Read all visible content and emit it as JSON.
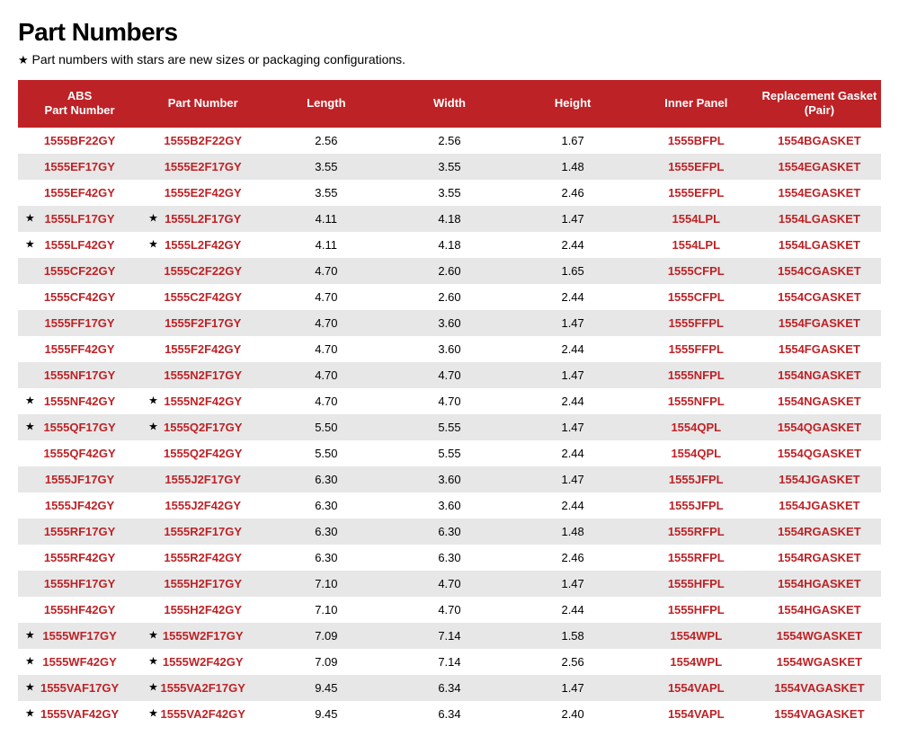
{
  "title": "Part Numbers",
  "subtitle_star": "★",
  "subtitle_text": " Part numbers with stars are new sizes or packaging configurations.",
  "columns": [
    "ABS\nPart Number",
    "Part Number",
    "Length",
    "Width",
    "Height",
    "Inner Panel",
    "Replacement Gasket\n(Pair)"
  ],
  "rows": [
    {
      "abs_star": false,
      "abs": "1555BF22GY",
      "pn_star": false,
      "pn": "1555B2F22GY",
      "len": "2.56",
      "wid": "2.56",
      "hgt": "1.67",
      "panel": "1555BFPL",
      "gasket": "1554BGASKET"
    },
    {
      "abs_star": false,
      "abs": "1555EF17GY",
      "pn_star": false,
      "pn": "1555E2F17GY",
      "len": "3.55",
      "wid": "3.55",
      "hgt": "1.48",
      "panel": "1555EFPL",
      "gasket": "1554EGASKET"
    },
    {
      "abs_star": false,
      "abs": "1555EF42GY",
      "pn_star": false,
      "pn": "1555E2F42GY",
      "len": "3.55",
      "wid": "3.55",
      "hgt": "2.46",
      "panel": "1555EFPL",
      "gasket": "1554EGASKET"
    },
    {
      "abs_star": true,
      "abs": "1555LF17GY",
      "pn_star": true,
      "pn": "1555L2F17GY",
      "len": "4.11",
      "wid": "4.18",
      "hgt": "1.47",
      "panel": "1554LPL",
      "gasket": "1554LGASKET"
    },
    {
      "abs_star": true,
      "abs": "1555LF42GY",
      "pn_star": true,
      "pn": "1555L2F42GY",
      "len": "4.11",
      "wid": "4.18",
      "hgt": "2.44",
      "panel": "1554LPL",
      "gasket": "1554LGASKET"
    },
    {
      "abs_star": false,
      "abs": "1555CF22GY",
      "pn_star": false,
      "pn": "1555C2F22GY",
      "len": "4.70",
      "wid": "2.60",
      "hgt": "1.65",
      "panel": "1555CFPL",
      "gasket": "1554CGASKET"
    },
    {
      "abs_star": false,
      "abs": "1555CF42GY",
      "pn_star": false,
      "pn": "1555C2F42GY",
      "len": "4.70",
      "wid": "2.60",
      "hgt": "2.44",
      "panel": "1555CFPL",
      "gasket": "1554CGASKET"
    },
    {
      "abs_star": false,
      "abs": "1555FF17GY",
      "pn_star": false,
      "pn": "1555F2F17GY",
      "len": "4.70",
      "wid": "3.60",
      "hgt": "1.47",
      "panel": "1555FFPL",
      "gasket": "1554FGASKET"
    },
    {
      "abs_star": false,
      "abs": "1555FF42GY",
      "pn_star": false,
      "pn": "1555F2F42GY",
      "len": "4.70",
      "wid": "3.60",
      "hgt": "2.44",
      "panel": "1555FFPL",
      "gasket": "1554FGASKET"
    },
    {
      "abs_star": false,
      "abs": "1555NF17GY",
      "pn_star": false,
      "pn": "1555N2F17GY",
      "len": "4.70",
      "wid": "4.70",
      "hgt": "1.47",
      "panel": "1555NFPL",
      "gasket": "1554NGASKET"
    },
    {
      "abs_star": true,
      "abs": "1555NF42GY",
      "pn_star": true,
      "pn": "1555N2F42GY",
      "len": "4.70",
      "wid": "4.70",
      "hgt": "2.44",
      "panel": "1555NFPL",
      "gasket": "1554NGASKET"
    },
    {
      "abs_star": true,
      "abs": "1555QF17GY",
      "pn_star": true,
      "pn": "1555Q2F17GY",
      "len": "5.50",
      "wid": "5.55",
      "hgt": "1.47",
      "panel": "1554QPL",
      "gasket": "1554QGASKET"
    },
    {
      "abs_star": false,
      "abs": "1555QF42GY",
      "pn_star": false,
      "pn": "1555Q2F42GY",
      "len": "5.50",
      "wid": "5.55",
      "hgt": "2.44",
      "panel": "1554QPL",
      "gasket": "1554QGASKET"
    },
    {
      "abs_star": false,
      "abs": "1555JF17GY",
      "pn_star": false,
      "pn": "1555J2F17GY",
      "len": "6.30",
      "wid": "3.60",
      "hgt": "1.47",
      "panel": "1555JFPL",
      "gasket": "1554JGASKET"
    },
    {
      "abs_star": false,
      "abs": "1555JF42GY",
      "pn_star": false,
      "pn": "1555J2F42GY",
      "len": "6.30",
      "wid": "3.60",
      "hgt": "2.44",
      "panel": "1555JFPL",
      "gasket": "1554JGASKET"
    },
    {
      "abs_star": false,
      "abs": "1555RF17GY",
      "pn_star": false,
      "pn": "1555R2F17GY",
      "len": "6.30",
      "wid": "6.30",
      "hgt": "1.48",
      "panel": "1555RFPL",
      "gasket": "1554RGASKET"
    },
    {
      "abs_star": false,
      "abs": "1555RF42GY",
      "pn_star": false,
      "pn": "1555R2F42GY",
      "len": "6.30",
      "wid": "6.30",
      "hgt": "2.46",
      "panel": "1555RFPL",
      "gasket": "1554RGASKET"
    },
    {
      "abs_star": false,
      "abs": "1555HF17GY",
      "pn_star": false,
      "pn": "1555H2F17GY",
      "len": "7.10",
      "wid": "4.70",
      "hgt": "1.47",
      "panel": "1555HFPL",
      "gasket": "1554HGASKET"
    },
    {
      "abs_star": false,
      "abs": "1555HF42GY",
      "pn_star": false,
      "pn": "1555H2F42GY",
      "len": "7.10",
      "wid": "4.70",
      "hgt": "2.44",
      "panel": "1555HFPL",
      "gasket": "1554HGASKET"
    },
    {
      "abs_star": true,
      "abs": "1555WF17GY",
      "pn_star": true,
      "pn": "1555W2F17GY",
      "len": "7.09",
      "wid": "7.14",
      "hgt": "1.58",
      "panel": "1554WPL",
      "gasket": "1554WGASKET"
    },
    {
      "abs_star": true,
      "abs": "1555WF42GY",
      "pn_star": true,
      "pn": "1555W2F42GY",
      "len": "7.09",
      "wid": "7.14",
      "hgt": "2.56",
      "panel": "1554WPL",
      "gasket": "1554WGASKET"
    },
    {
      "abs_star": true,
      "abs": "1555VAF17GY",
      "pn_star": true,
      "pn": "1555VA2F17GY",
      "len": "9.45",
      "wid": "6.34",
      "hgt": "1.47",
      "panel": "1554VAPL",
      "gasket": "1554VAGASKET"
    },
    {
      "abs_star": true,
      "abs": "1555VAF42GY",
      "pn_star": true,
      "pn": "1555VA2F42GY",
      "len": "9.45",
      "wid": "6.34",
      "hgt": "2.40",
      "panel": "1554VAPL",
      "gasket": "1554VAGASKET"
    }
  ],
  "star_glyph": "★",
  "colors": {
    "header_bg": "#bd2226",
    "header_fg": "#ffffff",
    "row_odd_bg": "#ffffff",
    "row_even_bg": "#e7e7e7",
    "link_color": "#bd2226",
    "text_color": "#000000"
  }
}
